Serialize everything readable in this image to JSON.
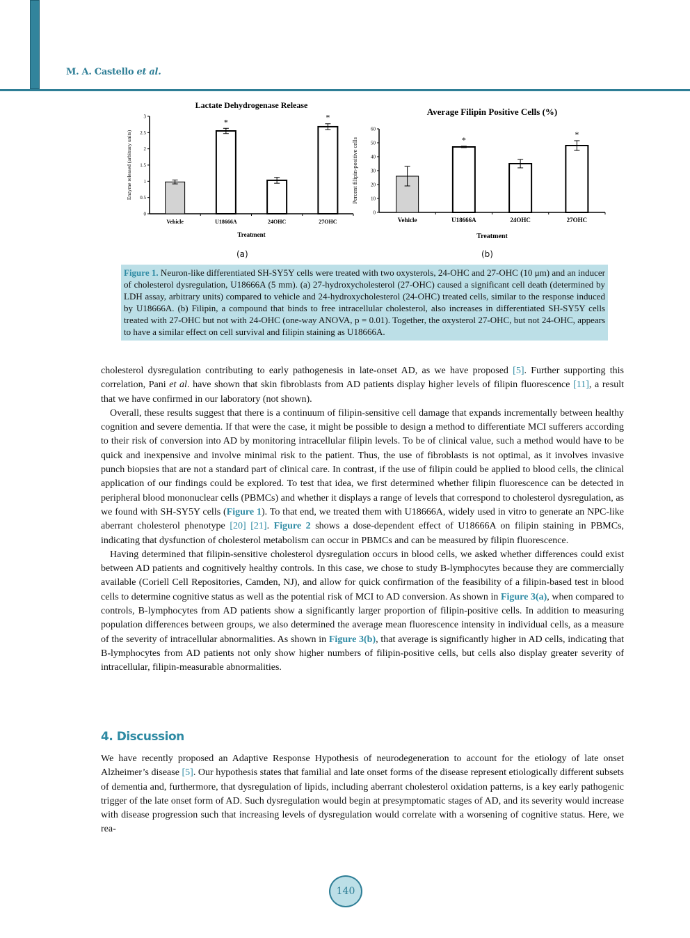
{
  "header": {
    "author": "M. A. Castello",
    "author_suffix": "et al."
  },
  "figure": {
    "caption_label": "Figure 1.",
    "caption_text": " Neuron-like differentiated SH-SY5Y cells were treated with two oxysterols, 24-OHC and 27-OHC (10 μm) and an inducer of cholesterol dysregulation, U18666A (5 mm). (a) 27-hydroxycholesterol (27-OHC) caused a significant cell death (determined by LDH assay, arbitrary units) compared to vehicle and 24-hydroxycholesterol (24-OHC) treated cells, similar to the response induced by U18666A. (b) Filipin, a compound that binds to free intracellular cholesterol, also increases in differentiated SH-SY5Y cells treated with 27-OHC but not with 24-OHC (one-way ANOVA, p = 0.01). Together, the oxysterol 27-OHC, but not 24-OHC, appears to have a similar effect on cell survival and filipin staining as U18666A.",
    "panel_a_label": "(a)",
    "panel_b_label": "(b)"
  },
  "chart_data": [
    {
      "type": "bar",
      "title": "Lactate Dehydrogenase Release",
      "xlabel": "Treatment",
      "ylabel": "Enzyme released (arbitrary units)",
      "categories": [
        "Vehicle",
        "U18666A",
        "24OHC",
        "27OHC"
      ],
      "values": [
        0.98,
        2.55,
        1.03,
        2.68
      ],
      "errors": [
        0.06,
        0.08,
        0.09,
        0.09
      ],
      "significance": [
        "",
        "*",
        "",
        "*"
      ],
      "bar_fills": [
        "#d3d3d3",
        "#ffffff",
        "#ffffff",
        "#ffffff"
      ],
      "ylim": [
        0,
        3
      ],
      "yticks": [
        "0",
        "0.5",
        "1",
        "1.5",
        "2",
        "2.5",
        "3"
      ],
      "grid": false
    },
    {
      "type": "bar",
      "title": "Average Filipin Positive Cells (%)",
      "xlabel": "Treatment",
      "ylabel": "Percent filipin-positive cells",
      "categories": [
        "Vehicle",
        "U18666A",
        "24OHC",
        "27OHC"
      ],
      "values": [
        26,
        47,
        35,
        48
      ],
      "errors": [
        7,
        0.5,
        3,
        3.5
      ],
      "significance": [
        "",
        "*",
        "",
        "*"
      ],
      "bar_fills": [
        "#d3d3d3",
        "#ffffff",
        "#ffffff",
        "#ffffff"
      ],
      "ylim": [
        0,
        60
      ],
      "yticks": [
        "0",
        "10",
        "20",
        "30",
        "40",
        "50",
        "60"
      ],
      "grid": false
    }
  ],
  "body": {
    "p1": [
      "cholesterol dysregulation contributing to early pathogenesis in late-onset AD, as we have proposed ",
      "[5]",
      ". Further supporting this correlation, Pani ",
      "et al",
      ". have shown that skin fibroblasts from AD patients display higher levels of filipin fluorescence ",
      "[11]",
      ", a result that we have confirmed in our laboratory (not shown)."
    ],
    "p2": [
      "Overall, these results suggest that there is a continuum of filipin-sensitive cell damage that expands incrementally between healthy cognition and severe dementia. If that were the case, it might be possible to design a method to differentiate MCI sufferers according to their risk of conversion into AD by monitoring intracellular filipin levels. To be of clinical value, such a method would have to be quick and inexpensive and involve minimal risk to the patient. Thus, the use of fibroblasts is not optimal, as it involves invasive punch biopsies that are not a standard part of clinical care. In contrast, if the use of filipin could be applied to blood cells, the clinical application of our findings could be explored. To test that idea, we first determined whether filipin fluorescence can be detected in peripheral blood mononuclear cells (PBMCs) and whether it displays a range of levels that correspond to cholesterol dysregulation, as we found with SH-SY5Y cells (",
      "Figure 1",
      "). To that end, we treated them with U18666A, widely used in vitro to generate an NPC-like aberrant cholesterol phenotype ",
      "[20] [21]",
      ". ",
      "Figure 2",
      " shows a dose-dependent effect of U18666A on filipin staining in PBMCs, indicating that dysfunction of cholesterol metabolism can occur in PBMCs and can be measured by filipin fluorescence."
    ],
    "p3": [
      "Having determined that filipin-sensitive cholesterol dysregulation occurs in blood cells, we asked whether differences could exist between AD patients and cognitively healthy controls. In this case, we chose to study B-lymphocytes because they are commercially available (Coriell Cell Repositories, Camden, NJ), and allow for quick confirmation of the feasibility of a filipin-based test in blood cells to determine cognitive status as well as the potential risk of MCI to AD conversion. As shown in ",
      "Figure 3(a)",
      ", when compared to controls, B-lymphocytes from AD patients show a significantly larger proportion of filipin-positive cells. In addition to measuring population differences between groups, we also determined the average mean fluorescence intensity in individual cells, as a measure of the severity of intracellular abnormalities. As shown in ",
      "Figure 3(b)",
      ", that average is significantly higher in AD cells, indicating that B-lymphocytes from AD patients not only show higher numbers of filipin-positive cells, but cells also display greater severity of intracellular, filipin-measurable abnormalities."
    ],
    "section_heading": "4. Discussion",
    "p4": [
      "We have recently proposed an Adaptive Response Hypothesis of neurodegeneration to account for the etiology of late onset Alzheimer’s disease ",
      "[5]",
      ". Our hypothesis states that familial and late onset forms of the disease represent etiologically different subsets of dementia and, furthermore, that dysregulation of lipids, including aberrant cholesterol oxidation patterns, is a key early pathogenic trigger of the late onset form of AD. Such dysregulation would begin at presymptomatic stages of AD, and its severity would increase with disease progression such that increasing levels of dysregulation would correlate with a worsening of cognitive status. Here, we rea-"
    ]
  },
  "footer": {
    "page_number": "140"
  },
  "colors": {
    "accent": "#2e8aa3",
    "caption_bg": "#bcdfe7",
    "vehicle_bar": "#d3d3d3"
  }
}
